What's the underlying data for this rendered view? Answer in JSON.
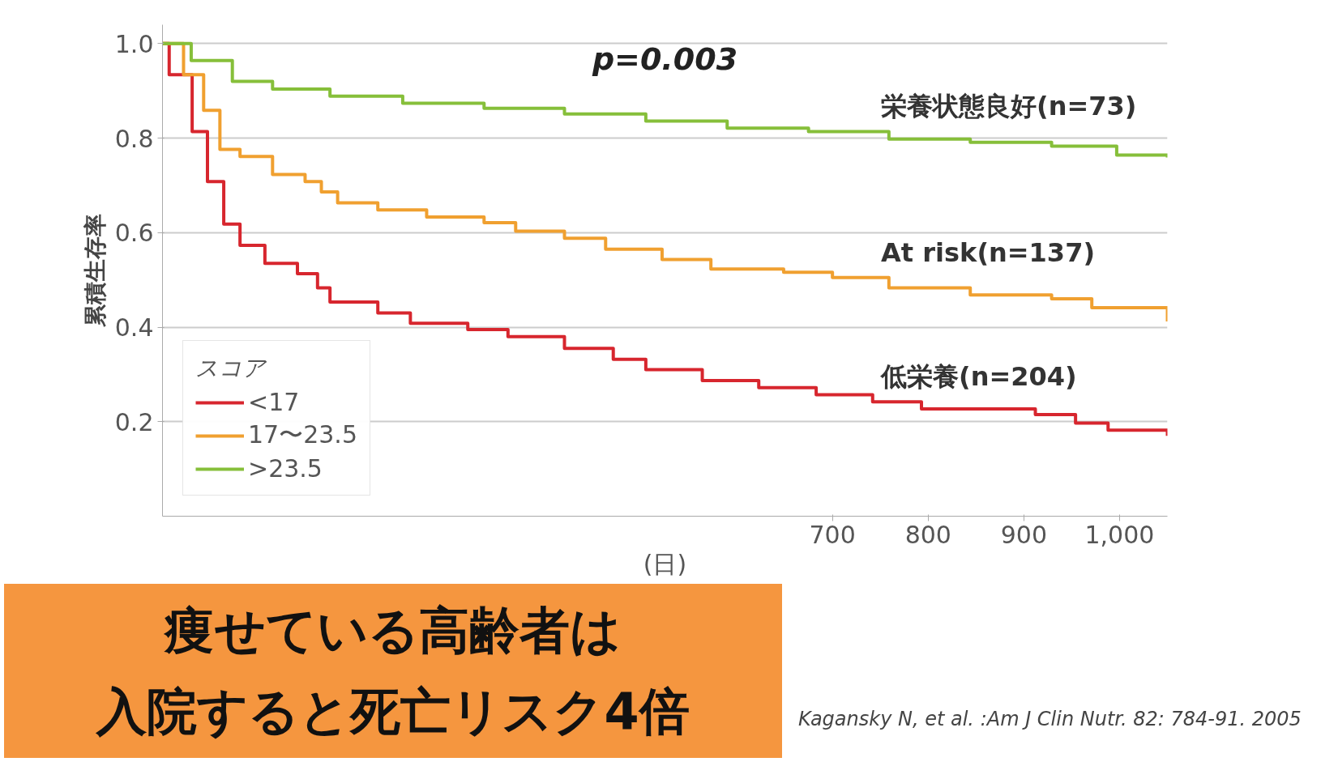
{
  "chart_data": {
    "type": "step",
    "ylabel": "累積生存率",
    "xlabel": "(日)",
    "legend_title": "スコア",
    "xlim": [
      0,
      1050
    ],
    "xticks": [
      700,
      800,
      900,
      {
        "value": 1000,
        "label": "1,000"
      }
    ],
    "ylim": [
      0,
      1.04
    ],
    "yticks": [
      0.2,
      0.4,
      0.6,
      0.8,
      {
        "value": 1.0,
        "label": "1.0"
      }
    ],
    "grid": "y",
    "legend": "bottom left",
    "line_style": "solid",
    "series": [
      {
        "name": "<17",
        "color": "#d7262e",
        "x": [
          0,
          7,
          31,
          47,
          64,
          81,
          107,
          141,
          162,
          175,
          225,
          259,
          319,
          361,
          420,
          471,
          505,
          564,
          623,
          683,
          742,
          793,
          912,
          954,
          988,
          1050
        ],
        "values": [
          1.0,
          0.934,
          0.814,
          0.708,
          0.618,
          0.573,
          0.535,
          0.513,
          0.483,
          0.453,
          0.43,
          0.408,
          0.395,
          0.38,
          0.355,
          0.332,
          0.31,
          0.287,
          0.272,
          0.257,
          0.242,
          0.227,
          0.215,
          0.197,
          0.182,
          0.17
        ]
      },
      {
        "name": "17〜23.5",
        "color": "#f0a030",
        "x": [
          0,
          22,
          43,
          60,
          81,
          115,
          149,
          166,
          183,
          225,
          276,
          336,
          369,
          420,
          463,
          522,
          573,
          649,
          700,
          759,
          844,
          929,
          971,
          1050
        ],
        "values": [
          1.0,
          0.934,
          0.859,
          0.776,
          0.761,
          0.723,
          0.708,
          0.686,
          0.663,
          0.648,
          0.633,
          0.621,
          0.603,
          0.588,
          0.565,
          0.543,
          0.523,
          0.516,
          0.505,
          0.483,
          0.468,
          0.46,
          0.441,
          0.412
        ]
      },
      {
        "name": ">23.5",
        "color": "#86bf3a",
        "x": [
          0,
          30,
          73,
          115,
          175,
          251,
          336,
          420,
          505,
          590,
          675,
          759,
          844,
          929,
          997,
          1050
        ],
        "values": [
          1.0,
          0.964,
          0.92,
          0.904,
          0.889,
          0.874,
          0.863,
          0.851,
          0.836,
          0.821,
          0.814,
          0.798,
          0.791,
          0.783,
          0.764,
          0.759
        ]
      }
    ],
    "annotations": [
      "p=0.003",
      "痩せている高齢者は",
      "入院すると死亡リスク4倍",
      "Kagansky N, et al. :Am J Clin Nutr. 82: 784-91. 2005",
      "栄養状態良好(n=73)",
      "At risk(n=137)",
      "低栄養(n=204)"
    ]
  }
}
